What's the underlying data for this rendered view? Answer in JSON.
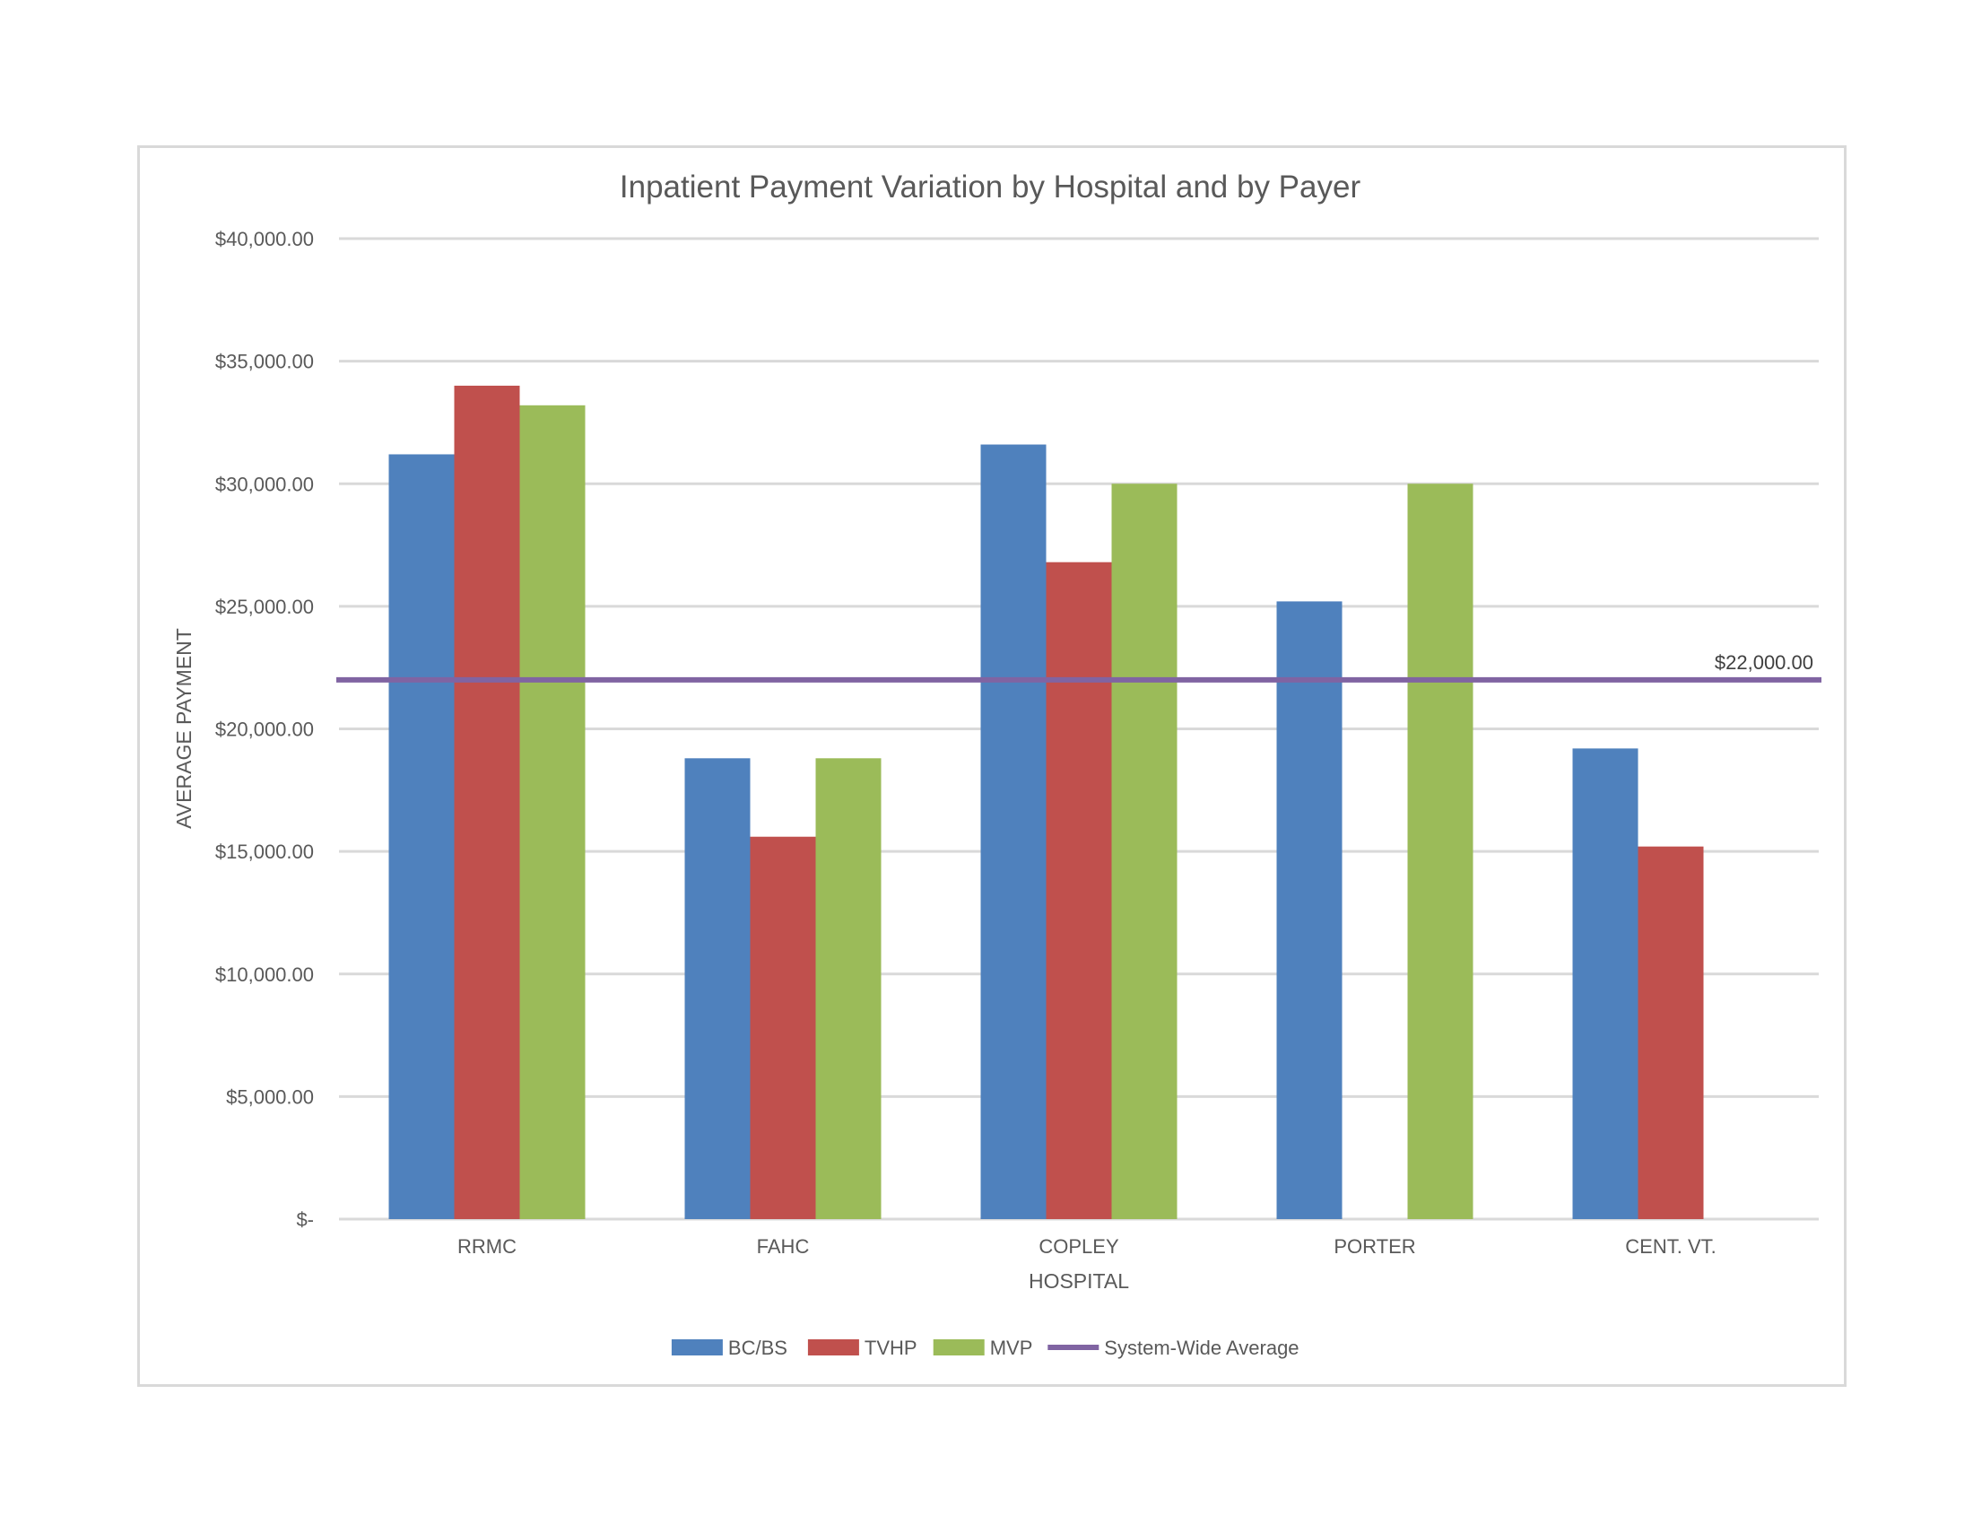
{
  "chart_data": {
    "type": "bar",
    "title": "Inpatient Payment Variation by Hospital and by Payer",
    "xlabel": "HOSPITAL",
    "ylabel": "AVERAGE PAYMENT",
    "categories": [
      "RRMC",
      "FAHC",
      "COPLEY",
      "PORTER",
      "CENT. VT."
    ],
    "series": [
      {
        "name": "BC/BS",
        "color": "#4f81bd",
        "values": [
          31200,
          18800,
          31600,
          25200,
          19200
        ]
      },
      {
        "name": "TVHP",
        "color": "#c0504d",
        "values": [
          34000,
          15600,
          26800,
          null,
          15200
        ]
      },
      {
        "name": "MVP",
        "color": "#9bbb59",
        "values": [
          33200,
          18800,
          30000,
          30000,
          null
        ]
      }
    ],
    "reference_line": {
      "name": "System-Wide Average",
      "value": 22000,
      "label": "$22,000.00",
      "color": "#8064a2"
    },
    "ylim": [
      0,
      40000
    ],
    "yticks": [
      0,
      5000,
      10000,
      15000,
      20000,
      25000,
      30000,
      35000,
      40000
    ],
    "ytick_labels": [
      "$-",
      "$5,000.00",
      "$10,000.00",
      "$15,000.00",
      "$20,000.00",
      "$25,000.00",
      "$30,000.00",
      "$35,000.00",
      "$40,000.00"
    ],
    "grid": true,
    "legend_position": "bottom"
  }
}
